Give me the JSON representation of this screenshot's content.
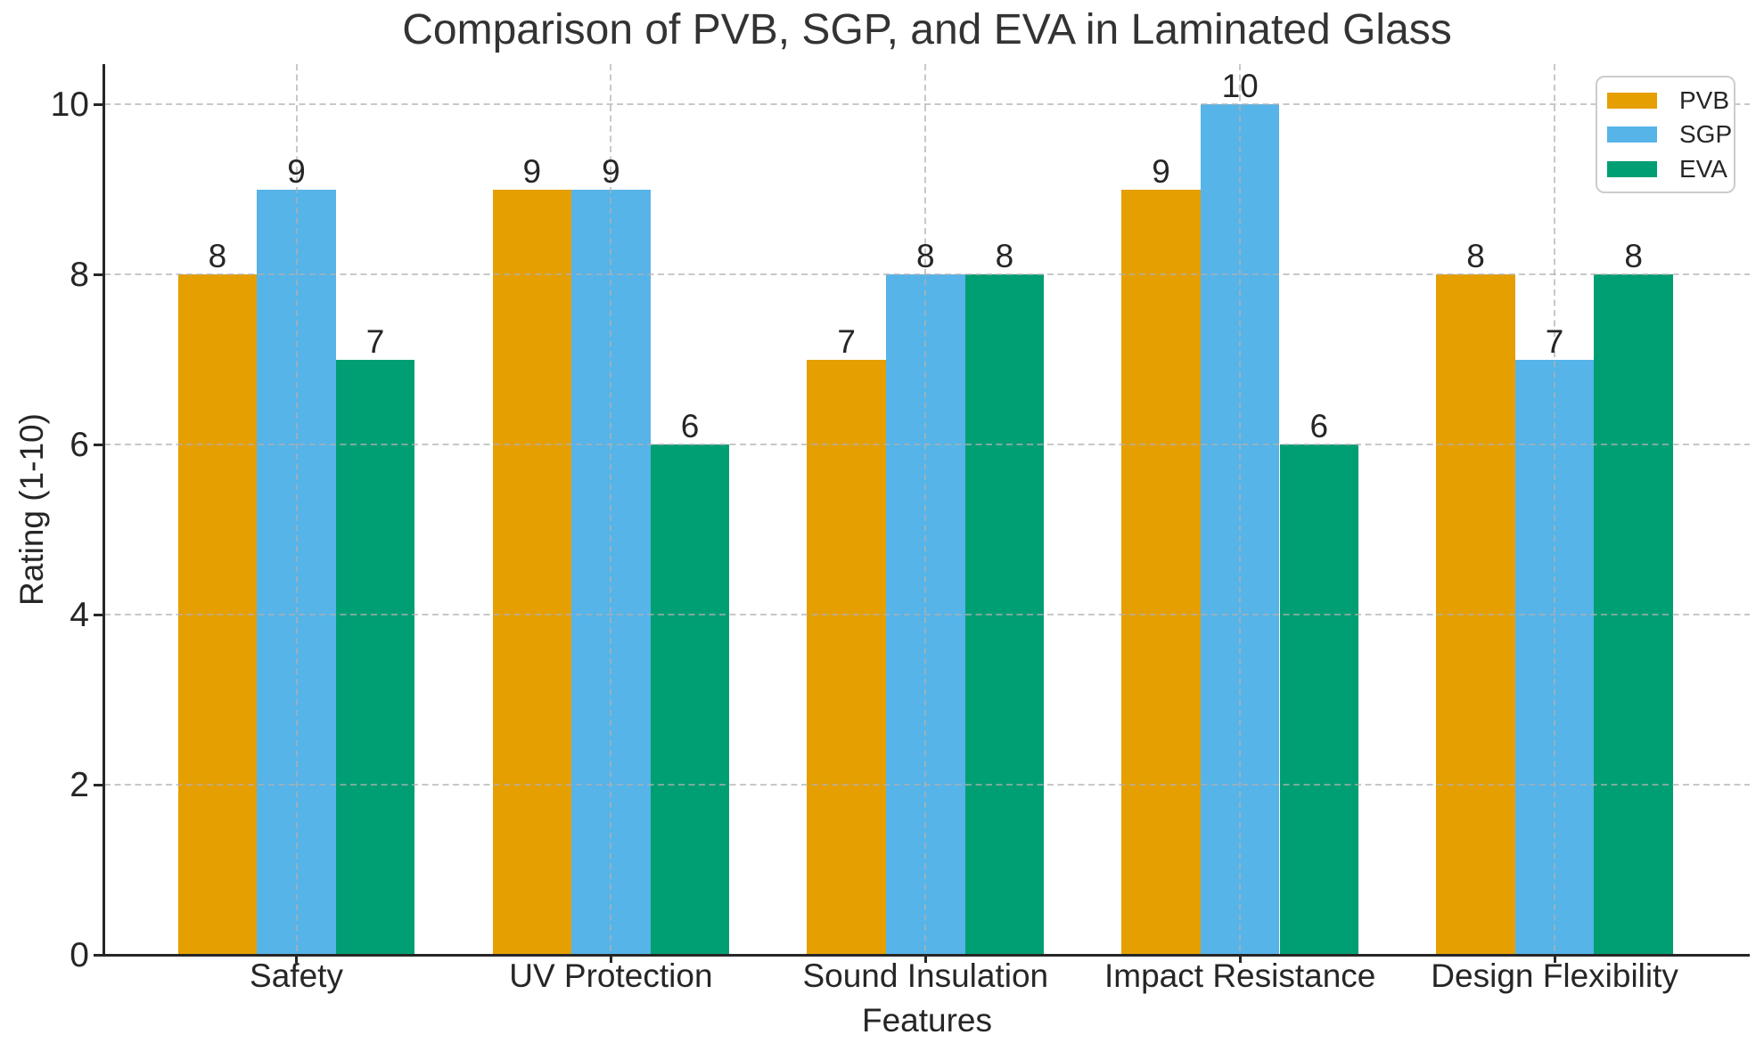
{
  "chart_data": {
    "type": "bar",
    "title": "Comparison of PVB, SGP, and EVA in Laminated Glass",
    "xlabel": "Features",
    "ylabel": "Rating (1-10)",
    "categories": [
      "Safety",
      "UV Protection",
      "Sound Insulation",
      "Impact Resistance",
      "Design Flexibility"
    ],
    "series": [
      {
        "name": "PVB",
        "color": "#E69F00",
        "values": [
          8,
          9,
          7,
          9,
          8
        ]
      },
      {
        "name": "SGP",
        "color": "#56B4E9",
        "values": [
          9,
          9,
          8,
          10,
          7
        ]
      },
      {
        "name": "EVA",
        "color": "#009E73",
        "values": [
          7,
          6,
          8,
          6,
          8
        ]
      }
    ],
    "yticks": [
      0,
      2,
      4,
      6,
      8,
      10
    ],
    "ylim": [
      0,
      10.47
    ],
    "grid": "dashed-both-axes-above-bars",
    "legend_position": "upper right",
    "bar_value_labels": true
  }
}
